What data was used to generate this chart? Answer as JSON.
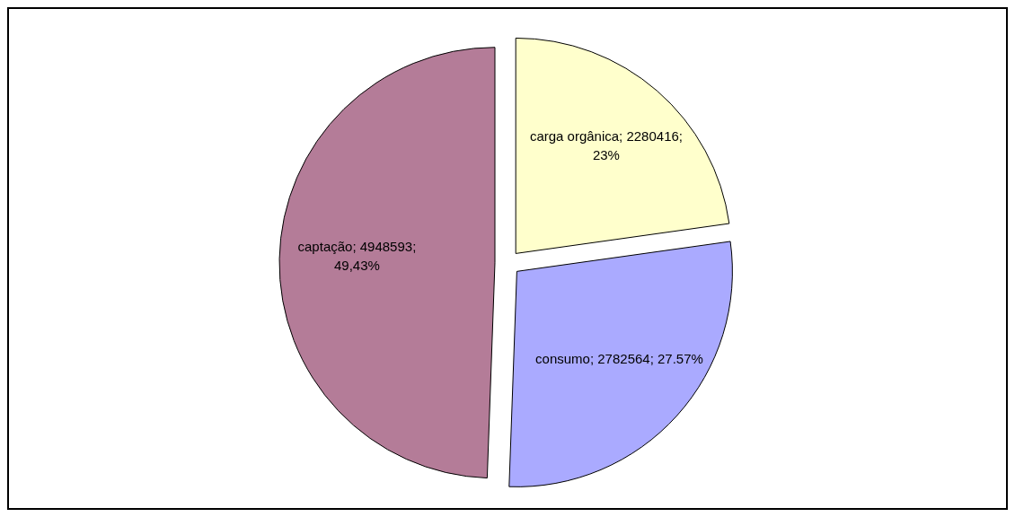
{
  "chart_data": {
    "type": "pie",
    "categories": [
      "carga orgânica",
      "consumo",
      "captação"
    ],
    "values": [
      2280416,
      2782564,
      4948593
    ],
    "colors": [
      "#ffffcc",
      "#aaaaff",
      "#b47c98"
    ],
    "value_labels": [
      "2280416; 23%",
      "2782564; 27.57%",
      "4948593; 49,43%"
    ],
    "legend": false
  }
}
